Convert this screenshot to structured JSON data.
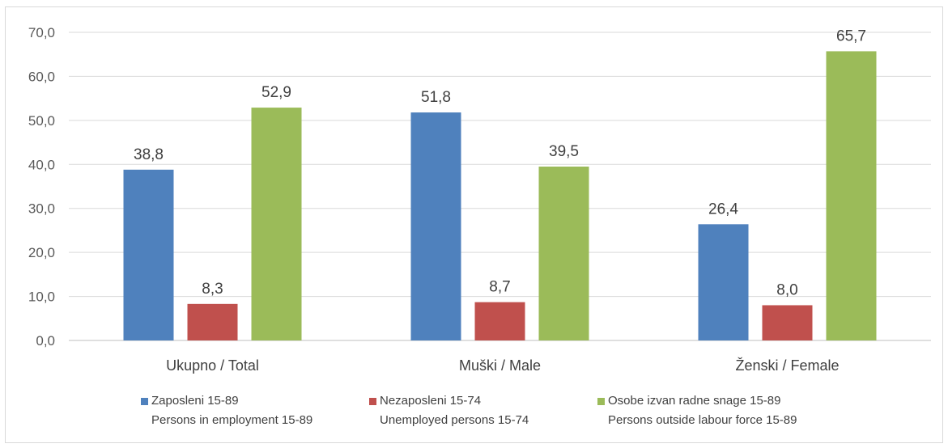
{
  "chart_data": {
    "type": "bar",
    "categories": [
      "Ukupno / Total",
      "Muški / Male",
      "Ženski / Female"
    ],
    "series": [
      {
        "name": "Zaposleni 15-89",
        "name_en": "Persons in employment 15-89",
        "color": "#4f81bd",
        "values": [
          38.8,
          51.8,
          26.4
        ],
        "labels": [
          "38,8",
          "51,8",
          "26,4"
        ]
      },
      {
        "name": "Nezaposleni 15-74",
        "name_en": "Unemployed persons 15-74",
        "color": "#c0504d",
        "values": [
          8.3,
          8.7,
          8.0
        ],
        "labels": [
          "8,3",
          "8,7",
          "8,0"
        ]
      },
      {
        "name": "Osobe izvan radne snage 15-89",
        "name_en": "Persons outside labour force 15-89",
        "color": "#9bbb59",
        "values": [
          52.9,
          39.5,
          65.7
        ],
        "labels": [
          "52,9",
          "39,5",
          "65,7"
        ]
      }
    ],
    "yticks": [
      "0,0",
      "10,0",
      "20,0",
      "30,0",
      "40,0",
      "50,0",
      "60,0",
      "70,0"
    ],
    "ylim": [
      0,
      70
    ],
    "grid": true,
    "legend_position": "bottom"
  }
}
